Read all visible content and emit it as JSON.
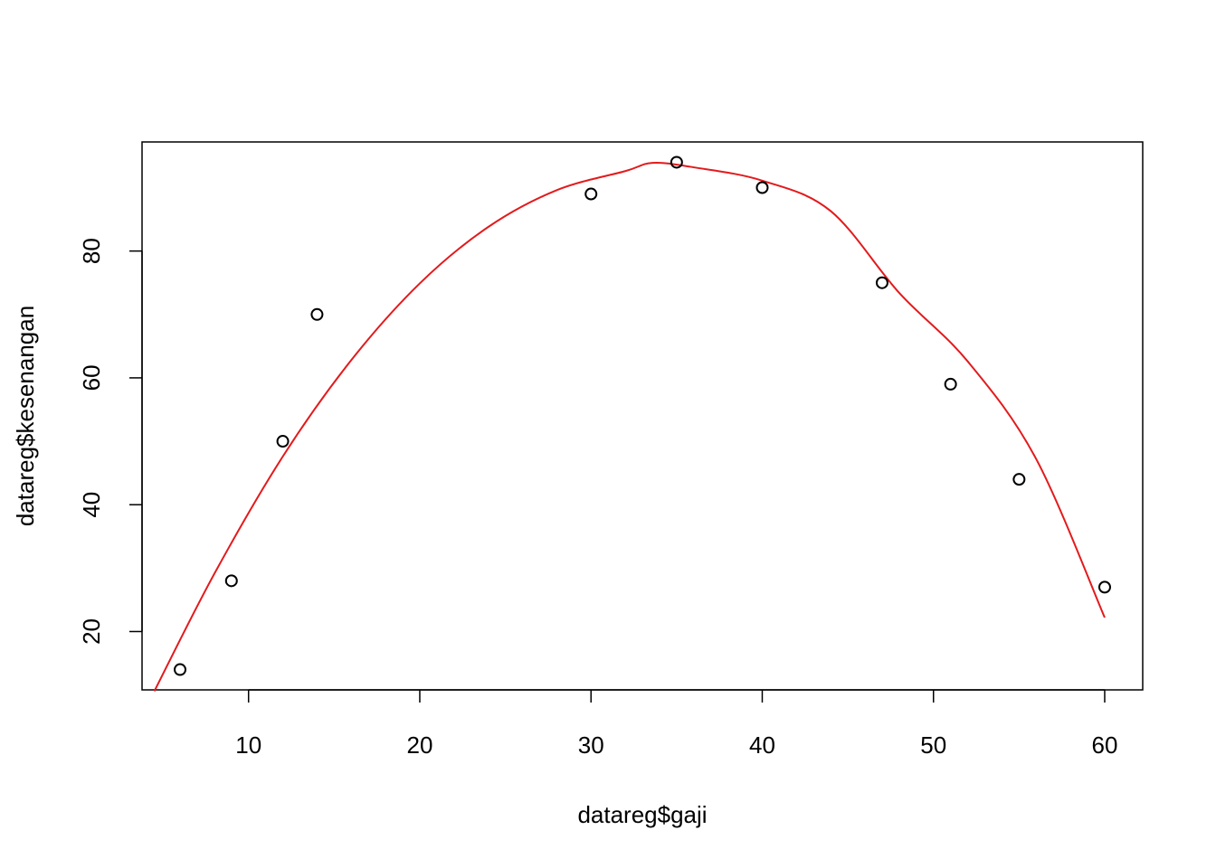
{
  "chart_data": {
    "type": "scatter",
    "title": "",
    "xlabel": "datareg$gaji",
    "ylabel": "datareg$kesenangan",
    "xlim": [
      3.78,
      62.22
    ],
    "ylim": [
      10.8,
      97.2
    ],
    "x_ticks": [
      10,
      20,
      30,
      40,
      50,
      60
    ],
    "y_ticks": [
      20,
      40,
      60,
      80
    ],
    "grid": false,
    "legend": "none",
    "series": [
      {
        "type": "scatter",
        "marker": "open-circle",
        "color": "#000000",
        "x": [
          6,
          9,
          12,
          14,
          30,
          35,
          40,
          47,
          51,
          55,
          60
        ],
        "y": [
          14,
          28,
          50,
          70,
          89,
          94,
          90,
          75,
          59,
          44,
          27
        ]
      },
      {
        "type": "line",
        "color": "#e31a1c",
        "x": [
          4.5,
          8,
          12,
          16,
          20,
          24,
          28,
          32,
          33.6,
          36,
          40,
          44,
          48,
          52,
          56,
          60
        ],
        "y": [
          10.6,
          29.1,
          47.6,
          62.8,
          74.9,
          83.8,
          89.6,
          92.6,
          93.9,
          93.2,
          91.1,
          86.3,
          73.4,
          62.6,
          47.2,
          22.2
        ]
      }
    ]
  }
}
